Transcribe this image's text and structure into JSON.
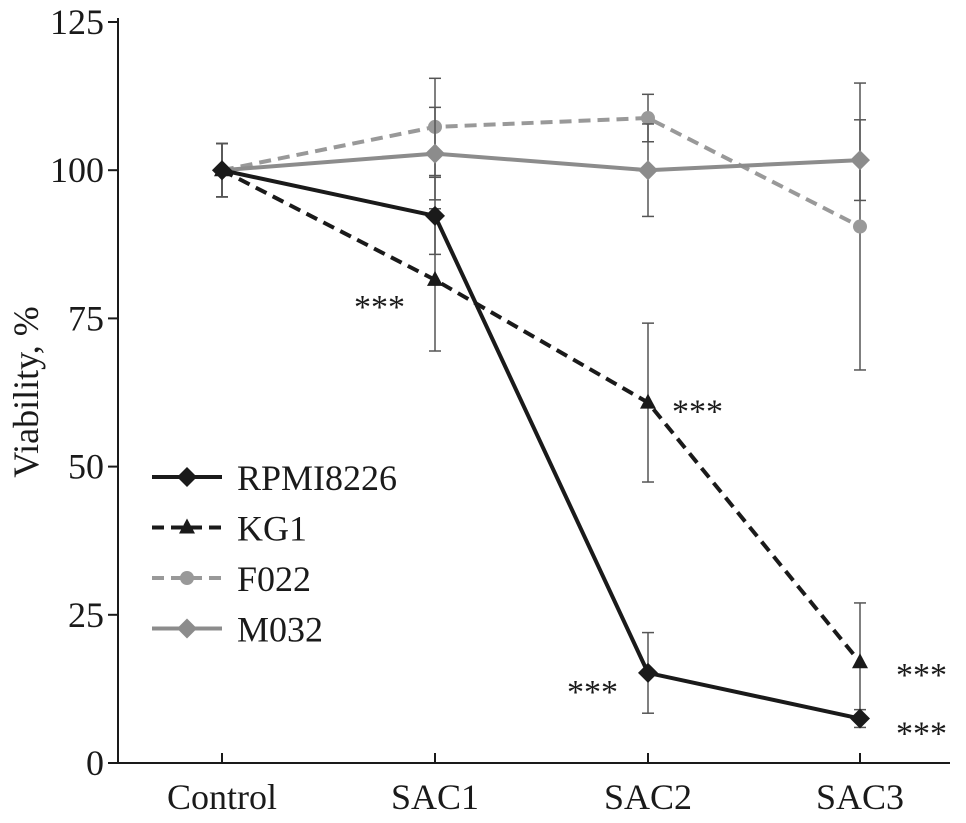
{
  "chart_data": {
    "type": "line",
    "title": "",
    "xlabel": "",
    "ylabel": "Viability, %",
    "ylim": [
      0,
      125
    ],
    "yticks": [
      0,
      25,
      50,
      75,
      100,
      125
    ],
    "categories": [
      "Control",
      "SAC1",
      "SAC2",
      "SAC3"
    ],
    "grid": false,
    "legend_position": "bottom-left",
    "series": [
      {
        "name": "RPMI8226",
        "color": "#1a1a1a",
        "dash": "solid",
        "marker": "diamond",
        "values": [
          100,
          92.3,
          15.2,
          7.5
        ],
        "errors": [
          4.5,
          6.5,
          6.8,
          1.5
        ],
        "significance": [
          "",
          "",
          "***",
          "***"
        ]
      },
      {
        "name": "KG1",
        "color": "#1a1a1a",
        "dash": "dashed",
        "marker": "triangle",
        "values": [
          100,
          81.5,
          60.8,
          17
        ],
        "errors": [
          4.5,
          12,
          13.4,
          10
        ],
        "significance": [
          "",
          "***",
          "***",
          "***"
        ]
      },
      {
        "name": "F022",
        "color": "#999999",
        "dash": "dashed",
        "marker": "circle",
        "values": [
          100,
          107.3,
          108.8,
          90.5
        ],
        "errors": [
          4.5,
          8.2,
          4,
          24.2
        ],
        "significance": [
          "",
          "",
          "",
          ""
        ]
      },
      {
        "name": "M032",
        "color": "#8c8c8c",
        "dash": "solid",
        "marker": "diamond",
        "values": [
          100,
          102.8,
          100,
          101.7
        ],
        "errors": [
          4.5,
          7.8,
          7.8,
          6.8
        ],
        "significance": [
          "",
          "",
          "",
          ""
        ]
      }
    ]
  }
}
